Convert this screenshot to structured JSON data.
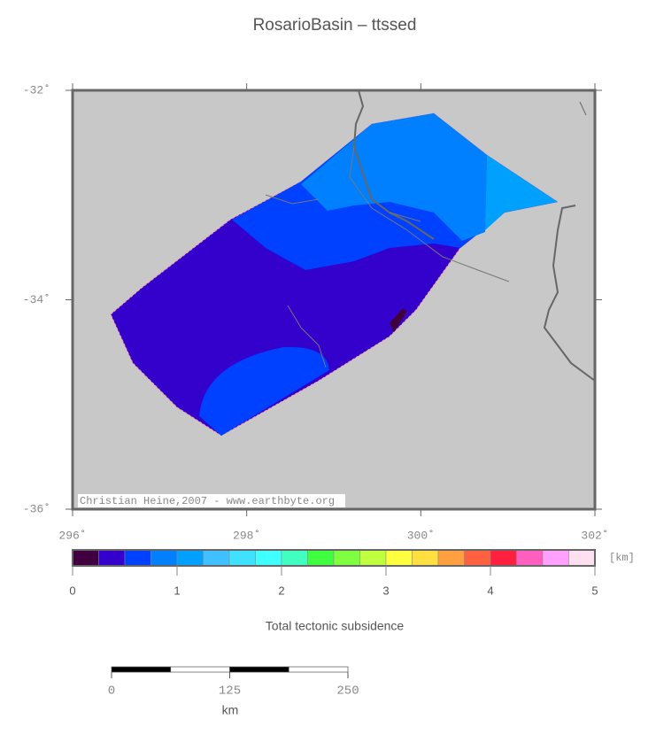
{
  "map": {
    "title": "RosarioBasin – ttssed",
    "xlim": [
      296,
      302
    ],
    "ylim": [
      -36,
      -32
    ],
    "xticks": [
      {
        "value": 296,
        "label": "296˚"
      },
      {
        "value": 298,
        "label": "298˚"
      },
      {
        "value": 300,
        "label": "300˚"
      },
      {
        "value": 302,
        "label": "302˚"
      }
    ],
    "yticks": [
      {
        "value": -32,
        "label": "-32˚"
      },
      {
        "value": -34,
        "label": "-34˚"
      },
      {
        "value": -36,
        "label": "-36˚"
      }
    ],
    "credit": "Christian Heine,2007 - www.earthbyte.org",
    "colorbar": {
      "lim": [
        0,
        5
      ],
      "ticks": [
        0,
        1,
        2,
        3,
        4,
        5
      ],
      "unit": "[km]",
      "label": "Total tectonic subsidence",
      "colors": [
        "#400040",
        "#3300cc",
        "#0040ff",
        "#0080ff",
        "#00a0ff",
        "#40c0ff",
        "#40e0ff",
        "#40ffff",
        "#40ffc0",
        "#40ff40",
        "#80ff40",
        "#c0ff40",
        "#ffff40",
        "#ffe040",
        "#ffa040",
        "#ff6040",
        "#ff2040",
        "#ff60c0",
        "#ffa0ff",
        "#ffe0f0"
      ]
    },
    "scalebar": {
      "lim": [
        0,
        250
      ],
      "ticks": [
        0,
        125,
        250
      ],
      "unit": "km"
    }
  }
}
